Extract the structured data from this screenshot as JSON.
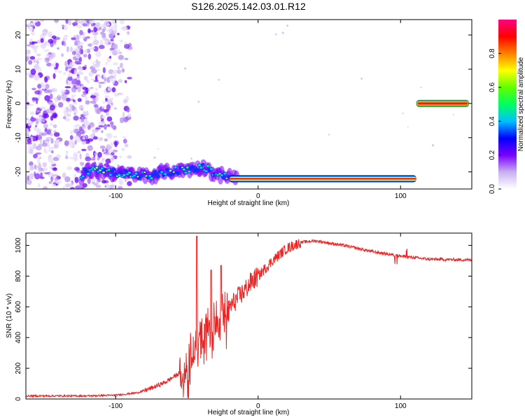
{
  "title": "S126.2025.142.03.01.R12",
  "chart_data": [
    {
      "type": "heatmap",
      "xlabel": "Height of straight line (km)",
      "ylabel": "Frequency (Hz)",
      "xlim": [
        -163,
        150
      ],
      "ylim": [
        -25,
        24.5
      ],
      "x_ticks": [
        "-100",
        "0",
        "100"
      ],
      "y_ticks": [
        "20",
        "10",
        "0",
        "-10",
        "-20"
      ],
      "colorbar": {
        "label": "Normalized spectral amplitude",
        "range": [
          0,
          1
        ],
        "ticks": [
          "0.0",
          "0.2",
          "0.4",
          "0.6",
          "0.8"
        ],
        "colors": [
          "#ffffff",
          "#c8b0f0",
          "#7a00ff",
          "#0000ff",
          "#00c0ff",
          "#00ff60",
          "#60ff00",
          "#ffff00",
          "#ff8000",
          "#ff0000",
          "#ff0080"
        ]
      },
      "noise_region_x": [
        -163,
        -90
      ],
      "signal_track": [
        [
          -122,
          -19.5
        ],
        [
          -105,
          -20
        ],
        [
          -95,
          -20.5
        ],
        [
          -85,
          -21
        ],
        [
          -75,
          -21
        ],
        [
          -65,
          -20
        ],
        [
          -55,
          -19.5
        ],
        [
          -45,
          -19
        ],
        [
          -38,
          -18.5
        ],
        [
          -30,
          -20.5
        ],
        [
          -20,
          -21.5
        ],
        [
          -10,
          -21.5
        ],
        [
          0,
          -22
        ],
        [
          20,
          -22
        ],
        [
          50,
          -22
        ],
        [
          80,
          -22
        ],
        [
          110,
          -22
        ]
      ],
      "carrier_segment": {
        "x": [
          111,
          148
        ],
        "y": 0
      }
    },
    {
      "type": "line",
      "xlabel": "Height of straight line (km)",
      "ylabel": "SNR (10 * v/v)",
      "xlim": [
        -163,
        150
      ],
      "ylim": [
        0,
        1080
      ],
      "x_ticks": [
        "-100",
        "0",
        "100"
      ],
      "y_ticks": [
        "0",
        "200",
        "400",
        "600",
        "800",
        "1000"
      ],
      "color": "#ee2222",
      "trend": [
        [
          -163,
          20
        ],
        [
          -120,
          20
        ],
        [
          -100,
          25
        ],
        [
          -85,
          40
        ],
        [
          -75,
          70
        ],
        [
          -65,
          110
        ],
        [
          -55,
          170
        ],
        [
          -50,
          260
        ],
        [
          -45,
          360
        ],
        [
          -40,
          430
        ],
        [
          -35,
          500
        ],
        [
          -30,
          520
        ],
        [
          -25,
          560
        ],
        [
          -20,
          600
        ],
        [
          -15,
          650
        ],
        [
          -10,
          700
        ],
        [
          -5,
          760
        ],
        [
          0,
          800
        ],
        [
          10,
          900
        ],
        [
          20,
          980
        ],
        [
          30,
          1020
        ],
        [
          40,
          1030
        ],
        [
          60,
          1000
        ],
        [
          80,
          960
        ],
        [
          100,
          930
        ],
        [
          120,
          910
        ],
        [
          150,
          905
        ]
      ],
      "spikes": [
        [
          -43,
          1060
        ],
        [
          -33,
          840
        ],
        [
          -26,
          870
        ]
      ]
    }
  ]
}
